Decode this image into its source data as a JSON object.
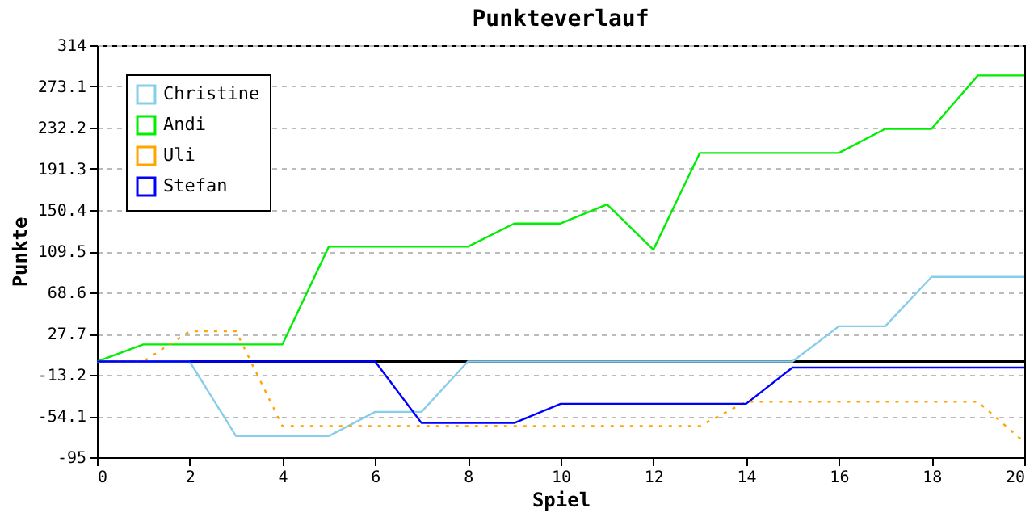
{
  "chart_data": {
    "type": "line",
    "title": "Punkteverlauf",
    "xlabel": "Spiel",
    "ylabel": "Punkte",
    "x": [
      0,
      1,
      2,
      3,
      4,
      5,
      6,
      7,
      8,
      9,
      10,
      11,
      12,
      13,
      14,
      15,
      16,
      17,
      18,
      19,
      20
    ],
    "series": [
      {
        "name": "Christine",
        "color": "#87ceeb",
        "values": [
          0,
          0,
          0,
          -74,
          -74,
          -74,
          -50,
          -50,
          0,
          0,
          0,
          0,
          0,
          0,
          0,
          0,
          35,
          35,
          84,
          84,
          84
        ]
      },
      {
        "name": "Andi",
        "color": "#00ee00",
        "values": [
          0,
          17,
          17,
          17,
          17,
          114,
          114,
          114,
          114,
          137,
          137,
          156,
          111,
          207,
          207,
          207,
          207,
          231,
          231,
          284,
          284
        ]
      },
      {
        "name": "Uli",
        "color": "#ffa500",
        "line_style": "dotted",
        "values": [
          0,
          0,
          30,
          30,
          -64,
          -64,
          -64,
          -64,
          -64,
          -64,
          -64,
          -64,
          -64,
          -64,
          -40,
          -40,
          -40,
          -40,
          -40,
          -40,
          -80
        ]
      },
      {
        "name": "Stefan",
        "color": "#0000ff",
        "values": [
          0,
          0,
          0,
          0,
          0,
          0,
          0,
          -61,
          -61,
          -61,
          -42,
          -42,
          -42,
          -42,
          -42,
          -6,
          -6,
          -6,
          -6,
          -6,
          -6
        ]
      }
    ],
    "xlim": [
      0,
      20
    ],
    "xticks": [
      0,
      2,
      4,
      6,
      8,
      10,
      12,
      14,
      16,
      18,
      20
    ],
    "ylim": [
      -95,
      314
    ],
    "yticks": [
      -95,
      -54.1,
      -13.2,
      27.7,
      68.6,
      109.5,
      150.4,
      191.3,
      232.2,
      273.1,
      314
    ],
    "ref_lines": [
      {
        "axis": "y",
        "value": 0,
        "color": "#000000"
      }
    ],
    "grid": "y",
    "legend": "top left",
    "marker": "none",
    "line_style": "solid"
  }
}
